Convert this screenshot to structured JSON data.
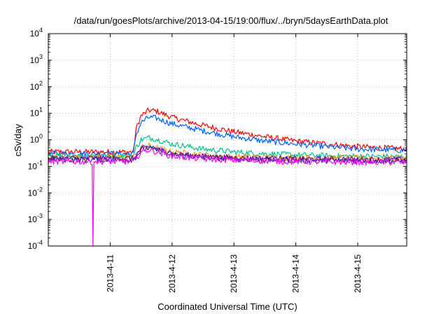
{
  "chart_data": {
    "type": "line",
    "title": "/data/run/goesPlots/archive/2013-04-15/19:00/flux/../bryn/5daysEarthData.plot",
    "xlabel": "Coordinated Universal Time (UTC)",
    "ylabel": "cSv/day",
    "x_range": [
      "2013-04-10T00:00",
      "2013-04-15T19:00"
    ],
    "x_ticks": [
      "2013-4-11",
      "2013-4-12",
      "2013-4-13",
      "2013-4-14",
      "2013-4-15"
    ],
    "y_scale": "log",
    "ylim": [
      0.0001,
      10000
    ],
    "y_ticks": [
      {
        "base": "10",
        "exp": "-4",
        "value": 0.0001
      },
      {
        "base": "10",
        "exp": "-3",
        "value": 0.001
      },
      {
        "base": "10",
        "exp": "-2",
        "value": 0.01
      },
      {
        "base": "10",
        "exp": "-1",
        "value": 0.1
      },
      {
        "base": "10",
        "exp": "0",
        "value": 1
      },
      {
        "base": "10",
        "exp": "1",
        "value": 10
      },
      {
        "base": "10",
        "exp": "2",
        "value": 100
      },
      {
        "base": "10",
        "exp": "3",
        "value": 1000
      },
      {
        "base": "10",
        "exp": "4",
        "value": 10000
      }
    ],
    "grid": true,
    "legend": "none",
    "series": [
      {
        "color": "#ff0000",
        "x": [
          "2013-04-10T00:00",
          "2013-04-11T09:00",
          "2013-04-11T10:00",
          "2013-04-11T12:00",
          "2013-04-11T15:00",
          "2013-04-11T18:00",
          "2013-04-12T00:00",
          "2013-04-12T12:00",
          "2013-04-13T00:00",
          "2013-04-13T12:00",
          "2013-04-14T00:00",
          "2013-04-14T12:00",
          "2013-04-15T00:00",
          "2013-04-15T19:00"
        ],
        "values": [
          0.35,
          0.35,
          2.5,
          8,
          13,
          12,
          7,
          3.5,
          2,
          1.3,
          0.9,
          0.7,
          0.55,
          0.45
        ]
      },
      {
        "color": "#0060ff",
        "x": [
          "2013-04-10T00:00",
          "2013-04-11T09:00",
          "2013-04-11T10:00",
          "2013-04-11T12:00",
          "2013-04-11T15:00",
          "2013-04-11T18:00",
          "2013-04-12T00:00",
          "2013-04-12T12:00",
          "2013-04-13T00:00",
          "2013-04-13T12:00",
          "2013-04-14T00:00",
          "2013-04-14T12:00",
          "2013-04-15T00:00",
          "2013-04-15T19:00"
        ],
        "values": [
          0.3,
          0.3,
          1.5,
          4.5,
          7,
          6.5,
          4,
          2.2,
          1.3,
          0.9,
          0.7,
          0.55,
          0.45,
          0.4
        ]
      },
      {
        "color": "#00c090",
        "x": [
          "2013-04-10T00:00",
          "2013-04-11T09:00",
          "2013-04-11T10:00",
          "2013-04-11T12:00",
          "2013-04-11T15:00",
          "2013-04-11T18:00",
          "2013-04-12T00:00",
          "2013-04-12T12:00",
          "2013-04-13T00:00",
          "2013-04-13T12:00",
          "2013-04-14T00:00",
          "2013-04-14T12:00",
          "2013-04-15T00:00",
          "2013-04-15T19:00"
        ],
        "values": [
          0.25,
          0.25,
          0.5,
          1,
          1.2,
          1.05,
          0.7,
          0.45,
          0.35,
          0.3,
          0.27,
          0.25,
          0.24,
          0.23
        ]
      },
      {
        "color": "#e8a000",
        "x": [
          "2013-04-10T00:00",
          "2013-04-11T09:00",
          "2013-04-11T12:00",
          "2013-04-11T15:00",
          "2013-04-11T18:00",
          "2013-04-12T00:00",
          "2013-04-12T12:00",
          "2013-04-13T00:00",
          "2013-04-14T00:00",
          "2013-04-15T19:00"
        ],
        "values": [
          0.22,
          0.22,
          0.5,
          0.6,
          0.5,
          0.35,
          0.27,
          0.23,
          0.21,
          0.2
        ]
      },
      {
        "color": "#8000c0",
        "x": [
          "2013-04-10T00:00",
          "2013-04-11T09:00",
          "2013-04-11T12:00",
          "2013-04-11T15:00",
          "2013-04-11T18:00",
          "2013-04-12T00:00",
          "2013-04-12T12:00",
          "2013-04-13T00:00",
          "2013-04-14T00:00",
          "2013-04-15T19:00"
        ],
        "values": [
          0.2,
          0.2,
          0.45,
          0.55,
          0.45,
          0.3,
          0.24,
          0.21,
          0.19,
          0.18
        ]
      },
      {
        "color": "#303080",
        "x": [
          "2013-04-10T00:00",
          "2013-04-11T09:00",
          "2013-04-11T12:00",
          "2013-04-11T15:00",
          "2013-04-11T18:00",
          "2013-04-12T00:00",
          "2013-04-12T12:00",
          "2013-04-13T00:00",
          "2013-04-14T00:00",
          "2013-04-15T19:00"
        ],
        "values": [
          0.18,
          0.18,
          0.4,
          0.5,
          0.42,
          0.28,
          0.22,
          0.19,
          0.17,
          0.16
        ]
      },
      {
        "color": "#ff00ff",
        "x": [
          "2013-04-10T00:00",
          "2013-04-10T17:00",
          "2013-04-10T17:20",
          "2013-04-10T17:40",
          "2013-04-11T09:00",
          "2013-04-11T12:00",
          "2013-04-11T15:00",
          "2013-04-11T18:00",
          "2013-04-12T00:00",
          "2013-04-12T12:00",
          "2013-04-13T00:00",
          "2013-04-14T00:00",
          "2013-04-15T19:00"
        ],
        "values": [
          0.15,
          0.15,
          0.0001,
          0.15,
          0.15,
          0.35,
          0.42,
          0.35,
          0.24,
          0.19,
          0.17,
          0.15,
          0.14
        ]
      }
    ]
  }
}
